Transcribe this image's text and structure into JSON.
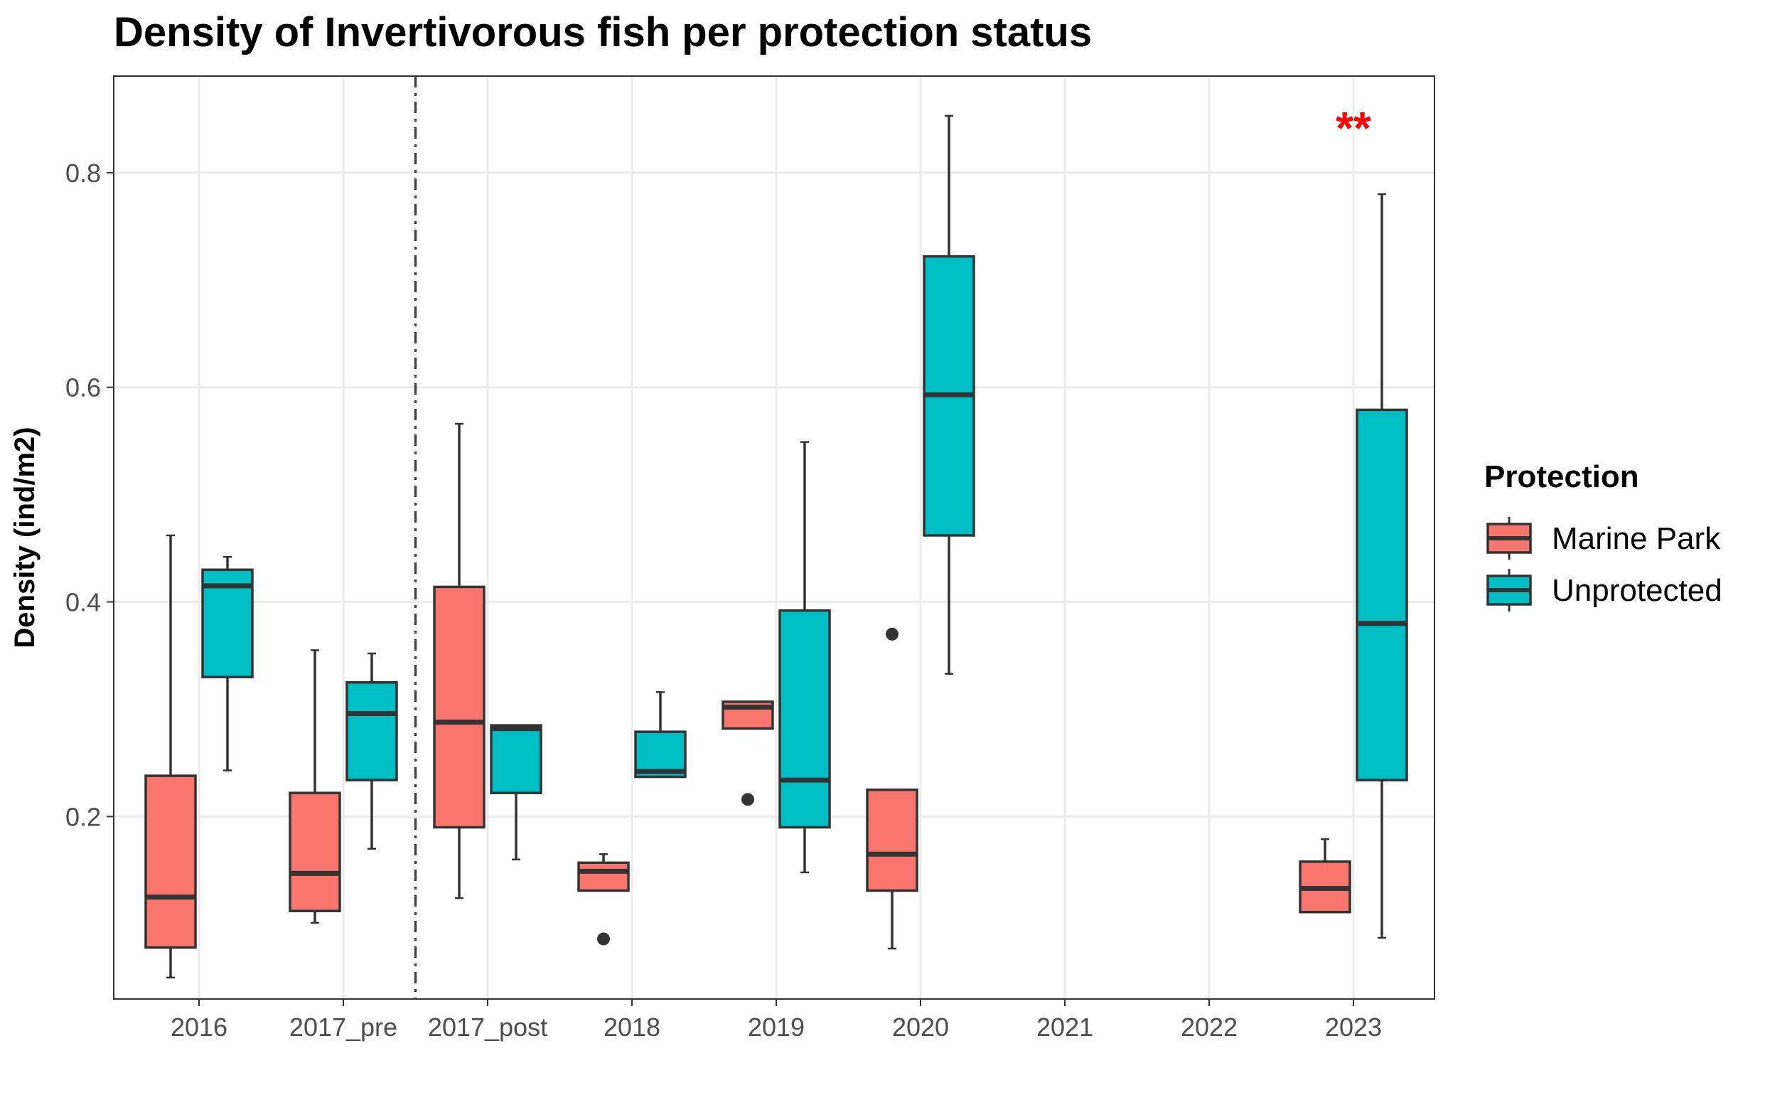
{
  "chart_data": {
    "type": "boxplot",
    "title": "Density of Invertivorous fish per protection status",
    "xlabel": "",
    "ylabel": "Density (ind/m2)",
    "categories": [
      "2016",
      "2017_pre",
      "2017_post",
      "2018",
      "2019",
      "2020",
      "2021",
      "2022",
      "2023"
    ],
    "ylim": [
      0.03,
      0.89
    ],
    "yticks": [
      0.2,
      0.4,
      0.6,
      0.8
    ],
    "ytick_labels": [
      "0.2",
      "0.4",
      "0.6",
      "0.8"
    ],
    "grid": true,
    "divider_between": [
      "2017_pre",
      "2017_post"
    ],
    "legend": {
      "title": "Protection",
      "position": "right"
    },
    "series": [
      {
        "name": "Marine Park",
        "color": "#F8766D",
        "boxes": [
          {
            "category": "2016",
            "min": 0.05,
            "q1": 0.078,
            "median": 0.125,
            "q3": 0.238,
            "max": 0.462,
            "outliers": []
          },
          {
            "category": "2017_pre",
            "min": 0.101,
            "q1": 0.112,
            "median": 0.147,
            "q3": 0.222,
            "max": 0.355,
            "outliers": []
          },
          {
            "category": "2017_post",
            "min": 0.124,
            "q1": 0.19,
            "median": 0.288,
            "q3": 0.414,
            "max": 0.566,
            "outliers": []
          },
          {
            "category": "2018",
            "min": 0.131,
            "q1": 0.131,
            "median": 0.149,
            "q3": 0.157,
            "max": 0.165,
            "outliers": [
              0.086
            ]
          },
          {
            "category": "2019",
            "min": 0.282,
            "q1": 0.282,
            "median": 0.302,
            "q3": 0.307,
            "max": 0.307,
            "outliers": [
              0.216
            ]
          },
          {
            "category": "2020",
            "min": 0.077,
            "q1": 0.131,
            "median": 0.165,
            "q3": 0.225,
            "max": 0.225,
            "outliers": [
              0.37
            ]
          },
          {
            "category": "2023",
            "min": 0.111,
            "q1": 0.111,
            "median": 0.133,
            "q3": 0.158,
            "max": 0.179,
            "outliers": []
          }
        ]
      },
      {
        "name": "Unprotected",
        "color": "#00BFC4",
        "boxes": [
          {
            "category": "2016",
            "min": 0.243,
            "q1": 0.33,
            "median": 0.415,
            "q3": 0.43,
            "max": 0.442,
            "outliers": []
          },
          {
            "category": "2017_pre",
            "min": 0.17,
            "q1": 0.234,
            "median": 0.296,
            "q3": 0.325,
            "max": 0.352,
            "outliers": []
          },
          {
            "category": "2017_post",
            "min": 0.16,
            "q1": 0.222,
            "median": 0.282,
            "q3": 0.285,
            "max": 0.285,
            "outliers": []
          },
          {
            "category": "2018",
            "min": 0.237,
            "q1": 0.237,
            "median": 0.242,
            "q3": 0.279,
            "max": 0.316,
            "outliers": []
          },
          {
            "category": "2019",
            "min": 0.148,
            "q1": 0.19,
            "median": 0.234,
            "q3": 0.392,
            "max": 0.549,
            "outliers": []
          },
          {
            "category": "2020",
            "min": 0.333,
            "q1": 0.462,
            "median": 0.593,
            "q3": 0.722,
            "max": 0.853,
            "outliers": []
          },
          {
            "category": "2023",
            "min": 0.087,
            "q1": 0.234,
            "median": 0.38,
            "q3": 0.579,
            "max": 0.78,
            "outliers": []
          }
        ]
      }
    ],
    "annotations": [
      {
        "text": "**",
        "category": "2023",
        "y": 0.855,
        "color": "#FF0000"
      }
    ]
  }
}
